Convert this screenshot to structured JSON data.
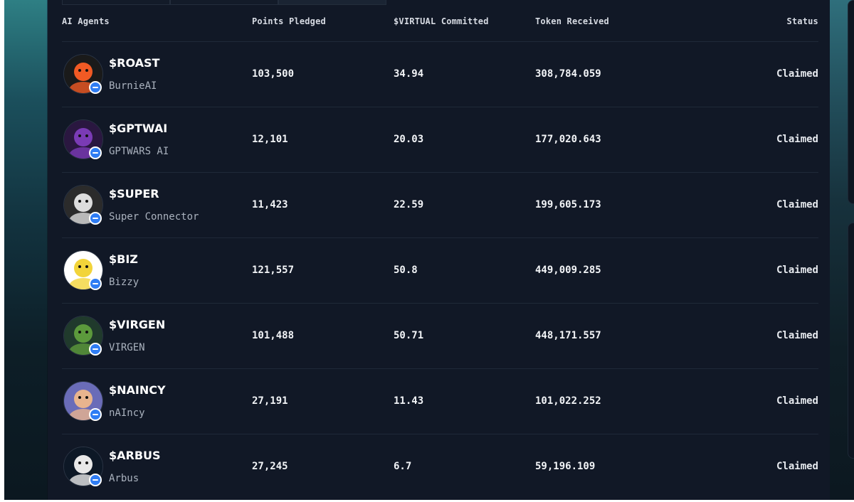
{
  "table": {
    "headers": {
      "agents": "AI Agents",
      "points": "Points Pledged",
      "virtual": "$VIRTUAL Committed",
      "token": "Token Received",
      "status": "Status"
    },
    "rows": [
      {
        "ticker": "$ROAST",
        "name": "BurnieAI",
        "points": "103,500",
        "virtual": "34.94",
        "token": "308,784.059",
        "status": "Claimed",
        "avatar_color": "#f15a24",
        "avatar_bg": "#1a1a1a"
      },
      {
        "ticker": "$GPTWAI",
        "name": "GPTWARS AI",
        "points": "12,101",
        "virtual": "20.03",
        "token": "177,020.643",
        "status": "Claimed",
        "avatar_color": "#7a3bb5",
        "avatar_bg": "#2a1740"
      },
      {
        "ticker": "$SUPER",
        "name": "Super Connector",
        "points": "11,423",
        "virtual": "22.59",
        "token": "199,605.173",
        "status": "Claimed",
        "avatar_color": "#dddddd",
        "avatar_bg": "#2b2b2b"
      },
      {
        "ticker": "$BIZ",
        "name": "Bizzy",
        "points": "121,557",
        "virtual": "50.8",
        "token": "449,009.285",
        "status": "Claimed",
        "avatar_color": "#f2d43a",
        "avatar_bg": "#ffffff"
      },
      {
        "ticker": "$VIRGEN",
        "name": "VIRGEN",
        "points": "101,488",
        "virtual": "50.71",
        "token": "448,171.557",
        "status": "Claimed",
        "avatar_color": "#5c9a3c",
        "avatar_bg": "#203a2c"
      },
      {
        "ticker": "$NAINCY",
        "name": "nAIncy",
        "points": "27,191",
        "virtual": "11.43",
        "token": "101,022.252",
        "status": "Claimed",
        "avatar_color": "#e8b48e",
        "avatar_bg": "#6a6cb8"
      },
      {
        "ticker": "$ARBUS",
        "name": "Arbus",
        "points": "27,245",
        "virtual": "6.7",
        "token": "59,196.109",
        "status": "Claimed",
        "avatar_color": "#e8e8e8",
        "avatar_bg": "#0d1826"
      }
    ]
  },
  "icons": {
    "badge": "virtual-verified-icon"
  }
}
